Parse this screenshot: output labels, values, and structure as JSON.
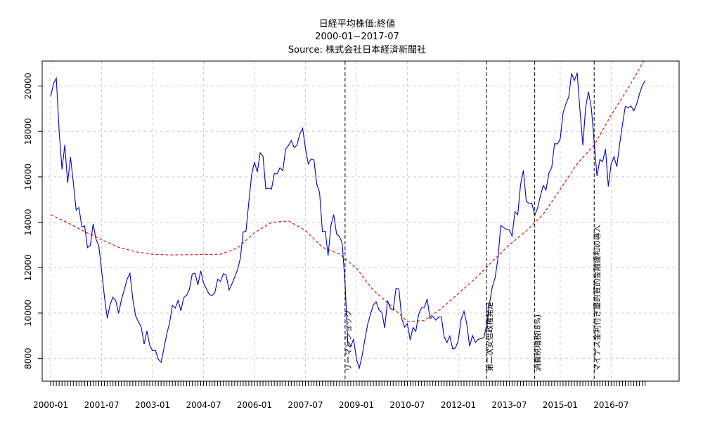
{
  "chart_data": {
    "type": "line",
    "title": "日経平均株価:終値",
    "subtitle": "2000-01~2017-07",
    "source": "Source: 株式会社日本経済新聞社",
    "xlabel": "",
    "ylabel": "",
    "x_range": [
      "1999-10",
      "2018-07"
    ],
    "ylim": [
      7000,
      21100
    ],
    "grid": true,
    "legend": "none",
    "x_tick_labels": [
      "2000-01",
      "2001-07",
      "2003-01",
      "2004-07",
      "2006-01",
      "2007-07",
      "2009-01",
      "2010-07",
      "2012-01",
      "2013-07",
      "2015-01",
      "2016-07"
    ],
    "y_tick_labels": [
      "8000",
      "10000",
      "12000",
      "14000",
      "16000",
      "18000",
      "20000"
    ],
    "colors": {
      "close": "#0000cc",
      "trend": "#dd0000",
      "event": "#000000",
      "grid": "#cccccc"
    },
    "series": [
      {
        "role": "close",
        "x": [
          "2000-01",
          "2000-02",
          "2000-03",
          "2000-04",
          "2000-05",
          "2000-06",
          "2000-07",
          "2000-08",
          "2000-09",
          "2000-10",
          "2000-11",
          "2000-12",
          "2001-01",
          "2001-02",
          "2001-03",
          "2001-04",
          "2001-05",
          "2001-06",
          "2001-07",
          "2001-08",
          "2001-09",
          "2001-10",
          "2001-11",
          "2001-12",
          "2002-01",
          "2002-02",
          "2002-03",
          "2002-04",
          "2002-05",
          "2002-06",
          "2002-07",
          "2002-08",
          "2002-09",
          "2002-10",
          "2002-11",
          "2002-12",
          "2003-01",
          "2003-02",
          "2003-03",
          "2003-04",
          "2003-05",
          "2003-06",
          "2003-07",
          "2003-08",
          "2003-09",
          "2003-10",
          "2003-11",
          "2003-12",
          "2004-01",
          "2004-02",
          "2004-03",
          "2004-04",
          "2004-05",
          "2004-06",
          "2004-07",
          "2004-08",
          "2004-09",
          "2004-10",
          "2004-11",
          "2004-12",
          "2005-01",
          "2005-02",
          "2005-03",
          "2005-04",
          "2005-05",
          "2005-06",
          "2005-07",
          "2005-08",
          "2005-09",
          "2005-10",
          "2005-11",
          "2005-12",
          "2006-01",
          "2006-02",
          "2006-03",
          "2006-04",
          "2006-05",
          "2006-06",
          "2006-07",
          "2006-08",
          "2006-09",
          "2006-10",
          "2006-11",
          "2006-12",
          "2007-01",
          "2007-02",
          "2007-03",
          "2007-04",
          "2007-05",
          "2007-06",
          "2007-07",
          "2007-08",
          "2007-09",
          "2007-10",
          "2007-11",
          "2007-12",
          "2008-01",
          "2008-02",
          "2008-03",
          "2008-04",
          "2008-05",
          "2008-06",
          "2008-07",
          "2008-08",
          "2008-09",
          "2008-10",
          "2008-11",
          "2008-12",
          "2009-01",
          "2009-02",
          "2009-03",
          "2009-04",
          "2009-05",
          "2009-06",
          "2009-07",
          "2009-08",
          "2009-09",
          "2009-10",
          "2009-11",
          "2009-12",
          "2010-01",
          "2010-02",
          "2010-03",
          "2010-04",
          "2010-05",
          "2010-06",
          "2010-07",
          "2010-08",
          "2010-09",
          "2010-10",
          "2010-11",
          "2010-12",
          "2011-01",
          "2011-02",
          "2011-03",
          "2011-04",
          "2011-05",
          "2011-06",
          "2011-07",
          "2011-08",
          "2011-09",
          "2011-10",
          "2011-11",
          "2011-12",
          "2012-01",
          "2012-02",
          "2012-03",
          "2012-04",
          "2012-05",
          "2012-06",
          "2012-07",
          "2012-08",
          "2012-09",
          "2012-10",
          "2012-11",
          "2012-12",
          "2013-01",
          "2013-02",
          "2013-03",
          "2013-04",
          "2013-05",
          "2013-06",
          "2013-07",
          "2013-08",
          "2013-09",
          "2013-10",
          "2013-11",
          "2013-12",
          "2014-01",
          "2014-02",
          "2014-03",
          "2014-04",
          "2014-05",
          "2014-06",
          "2014-07",
          "2014-08",
          "2014-09",
          "2014-10",
          "2014-11",
          "2014-12",
          "2015-01",
          "2015-02",
          "2015-03",
          "2015-04",
          "2015-05",
          "2015-06",
          "2015-07",
          "2015-08",
          "2015-09",
          "2015-10",
          "2015-11",
          "2015-12",
          "2016-01",
          "2016-02",
          "2016-03",
          "2016-04",
          "2016-05",
          "2016-06",
          "2016-07",
          "2016-08",
          "2016-09",
          "2016-10",
          "2016-11",
          "2016-12",
          "2017-01",
          "2017-02",
          "2017-03",
          "2017-04",
          "2017-05",
          "2017-06",
          "2017-07"
        ],
        "values": [
          19540,
          20100,
          20340,
          17970,
          16330,
          17410,
          15730,
          16860,
          15750,
          14540,
          14650,
          13790,
          13840,
          12880,
          12990,
          13930,
          13260,
          12970,
          11860,
          10710,
          9770,
          10370,
          10700,
          10540,
          9990,
          10590,
          11030,
          11490,
          11760,
          10620,
          9880,
          9620,
          9380,
          8640,
          9210,
          8580,
          8340,
          8360,
          7970,
          7830,
          8430,
          9080,
          9560,
          10340,
          10220,
          10560,
          10100,
          10680,
          10780,
          11040,
          11720,
          11760,
          11240,
          11860,
          11330,
          11080,
          10820,
          10770,
          10900,
          11490,
          11390,
          11740,
          11670,
          11010,
          11280,
          11580,
          11900,
          12410,
          13570,
          13610,
          14870,
          16110,
          16650,
          16210,
          17060,
          16910,
          15470,
          15510,
          15460,
          16140,
          16130,
          16400,
          16270,
          17230,
          17380,
          17600,
          17290,
          17400,
          17880,
          18140,
          17250,
          16570,
          16790,
          16740,
          15680,
          15310,
          13590,
          13600,
          12530,
          13850,
          14340,
          13480,
          13380,
          13070,
          11260,
          8580,
          8510,
          8860,
          7990,
          7570,
          8110,
          8830,
          9520,
          9960,
          10360,
          10490,
          10130,
          10030,
          9350,
          10550,
          10200,
          10130,
          11090,
          11060,
          9770,
          9380,
          9540,
          8820,
          9370,
          9200,
          9940,
          10230,
          10240,
          10620,
          9760,
          9850,
          9690,
          9820,
          9830,
          8960,
          8700,
          8990,
          8430,
          8460,
          8800,
          9720,
          10080,
          9520,
          8540,
          9010,
          8700,
          8840,
          8870,
          8930,
          9450,
          10400,
          11140,
          11560,
          12400,
          13860,
          13770,
          13680,
          13670,
          13390,
          14460,
          14330,
          15660,
          16290,
          14910,
          14840,
          14830,
          14300,
          14630,
          15160,
          15620,
          15420,
          16170,
          16410,
          17460,
          17450,
          17670,
          18800,
          19210,
          19520,
          20560,
          20240,
          20590,
          18890,
          17390,
          19080,
          19750,
          19030,
          17520,
          16030,
          16760,
          16670,
          17230,
          15580,
          16570,
          16890,
          16450,
          17430,
          18310,
          19110,
          19040,
          19120,
          18910,
          19200,
          19650,
          20030,
          20240
        ]
      },
      {
        "role": "trend",
        "x": [
          "2000-01",
          "2000-07",
          "2001-01",
          "2001-07",
          "2002-01",
          "2002-07",
          "2003-01",
          "2003-07",
          "2004-01",
          "2004-07",
          "2005-01",
          "2005-07",
          "2006-01",
          "2006-07",
          "2007-01",
          "2007-07",
          "2008-01",
          "2008-07",
          "2009-01",
          "2009-07",
          "2010-01",
          "2010-07",
          "2011-01",
          "2011-07",
          "2012-01",
          "2012-07",
          "2013-01",
          "2013-07",
          "2014-01",
          "2014-07",
          "2015-01",
          "2015-07",
          "2016-01",
          "2016-07",
          "2017-01",
          "2017-07"
        ],
        "values": [
          14330,
          13980,
          13590,
          13230,
          12900,
          12700,
          12590,
          12560,
          12570,
          12580,
          12590,
          12870,
          13540,
          13990,
          14060,
          13640,
          12900,
          12600,
          11980,
          11000,
          10350,
          9630,
          9670,
          10200,
          10860,
          11520,
          12270,
          13000,
          13620,
          14350,
          15450,
          16580,
          17400,
          18720,
          19900,
          21200
        ]
      }
    ],
    "events": [
      {
        "x": "2008-09",
        "label": "リーマンショック"
      },
      {
        "x": "2012-11",
        "label": "第二次安倍政権発足"
      },
      {
        "x": "2014-04",
        "label": "消費税増税(8%)"
      },
      {
        "x": "2016-01",
        "label": "マイナス金利付き量的質的金融緩和の導入"
      }
    ]
  }
}
